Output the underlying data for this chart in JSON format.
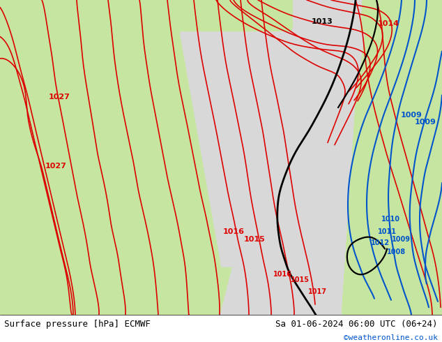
{
  "title_left": "Surface pressure [hPa] ECMWF",
  "title_right": "Sa 01-06-2024 06:00 UTC (06+24)",
  "title_right2": "©weatheronline.co.uk",
  "bg_color": "#f0f0f0",
  "land_color_green": "#c8e6a0",
  "land_color_light": "#e8e8e8",
  "sea_color": "#c8ddf0",
  "isobar_red_color": "#dd0000",
  "isobar_black_color": "#000000",
  "isobar_blue_color": "#0055cc",
  "text_color_black": "#000000",
  "text_color_blue": "#0055cc",
  "text_color_red": "#dd0000",
  "footer_bg": "#ffffff",
  "bottom_bar_height": 0.08
}
